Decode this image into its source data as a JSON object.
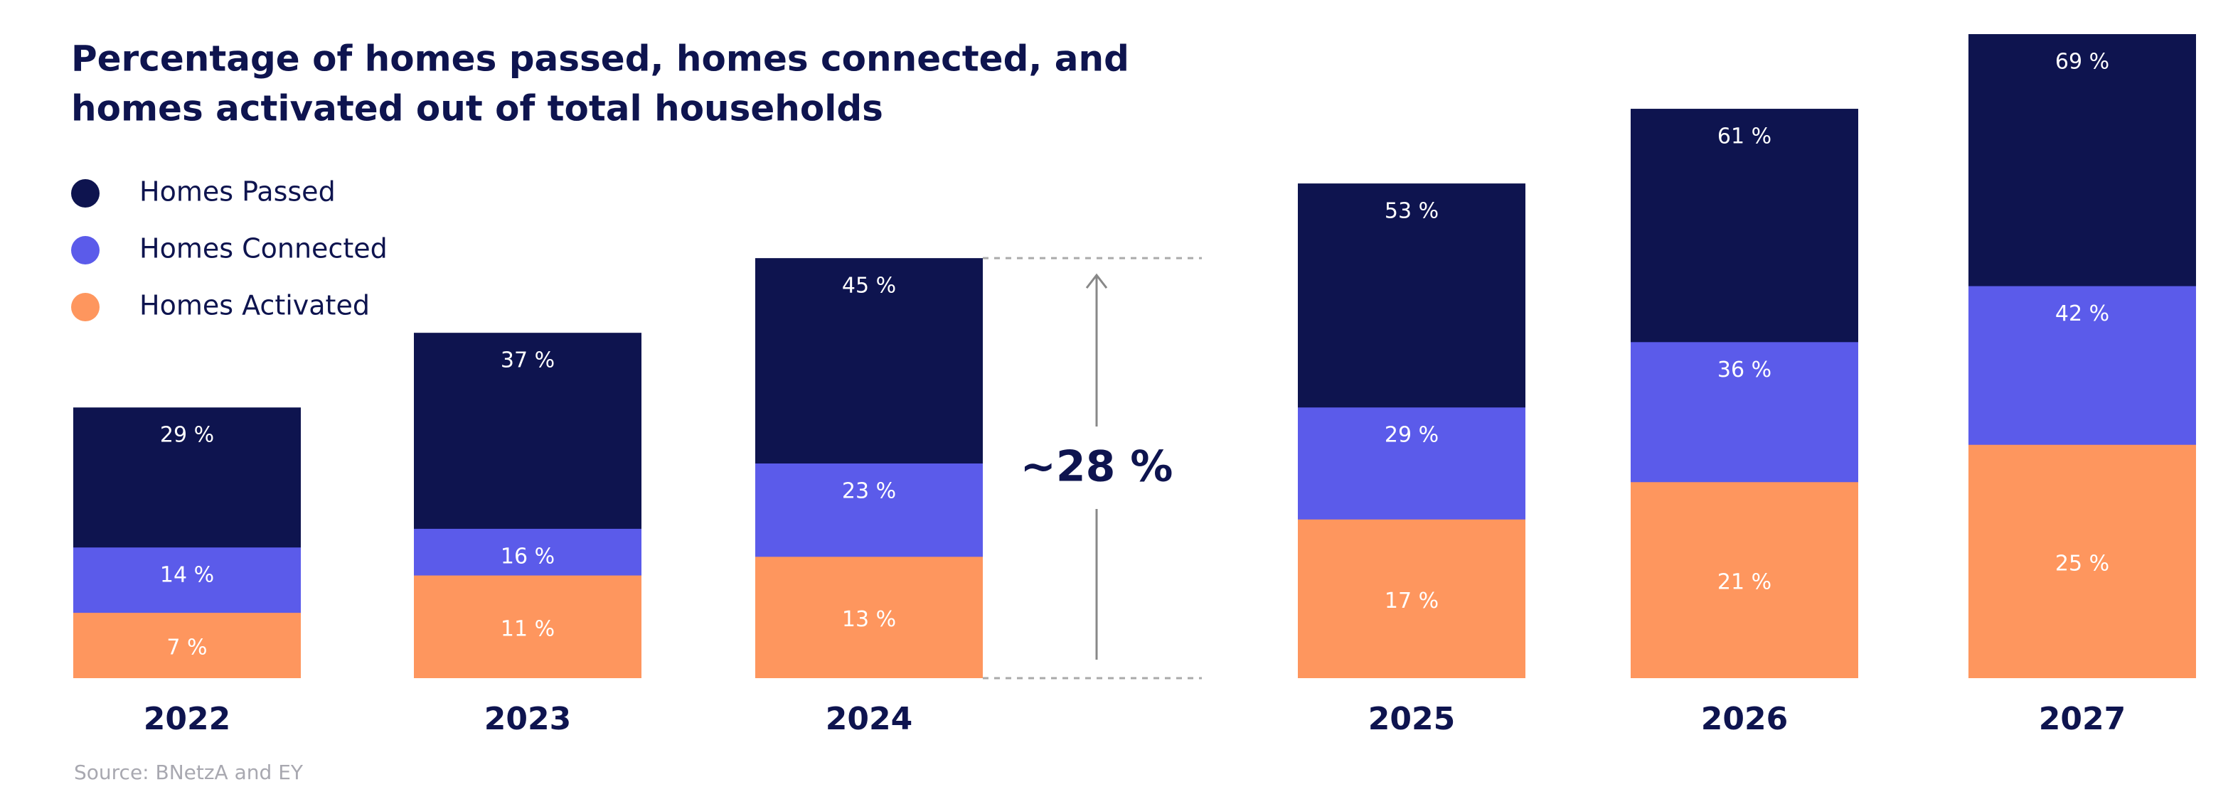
{
  "chart_data": {
    "type": "bar",
    "title": [
      "Percentage of homes passed, homes connected, and",
      "homes activated out of total households"
    ],
    "categories": [
      "2022",
      "2023",
      "2024",
      "2025",
      "2026",
      "2027"
    ],
    "series": [
      {
        "name": "Homes Passed",
        "color": "#0e144f",
        "values": [
          29,
          37,
          45,
          53,
          61,
          69
        ],
        "value_labels": [
          "29 %",
          "37 %",
          "45 %",
          "53 %",
          "61 %",
          "69 %"
        ]
      },
      {
        "name": "Homes Connected",
        "color": "#5b5bea",
        "values": [
          14,
          16,
          23,
          29,
          36,
          42
        ],
        "value_labels": [
          "14 %",
          "16 %",
          "23 %",
          "29 %",
          "36 %",
          "42 %"
        ]
      },
      {
        "name": "Homes Activated",
        "color": "#fe965e",
        "values": [
          7,
          11,
          13,
          17,
          21,
          25
        ],
        "value_labels": [
          "7 %",
          "11 %",
          "13 %",
          "17 %",
          "21 %",
          "25 %"
        ]
      }
    ],
    "annotation": "~28 %",
    "source": "Source: BNetzA and EY"
  }
}
